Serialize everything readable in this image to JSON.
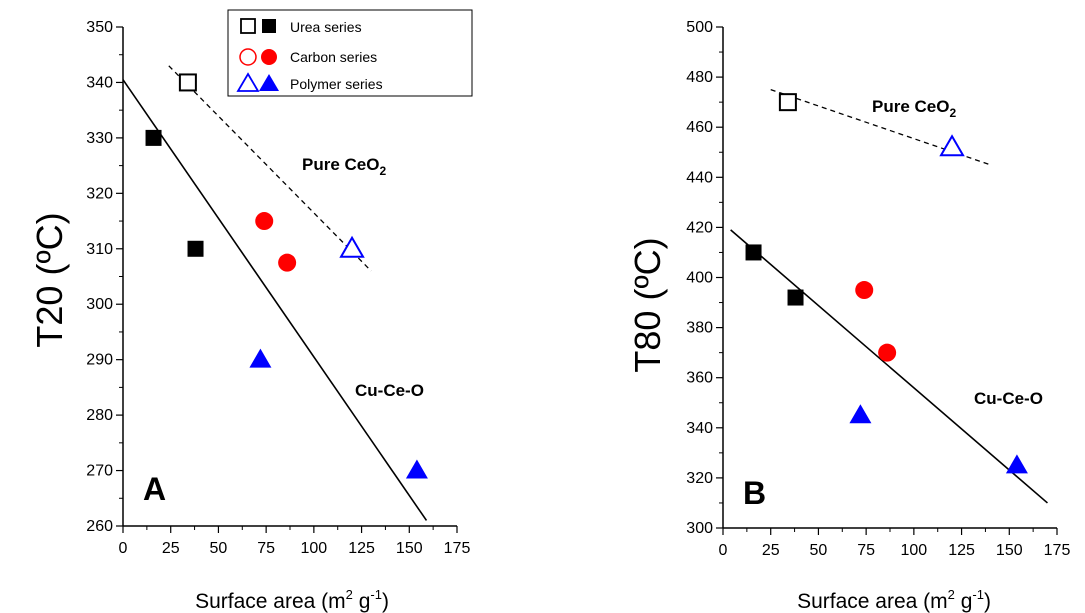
{
  "colors": {
    "urea": "#000000",
    "carbon": "#ff0000",
    "polymer": "#0000ff"
  },
  "legend": {
    "entries": [
      {
        "label": "Urea series",
        "color": "#000000",
        "shape": "square"
      },
      {
        "label": "Carbon series",
        "color": "#ff0000",
        "shape": "circle"
      },
      {
        "label": "Polymer series",
        "color": "#0000ff",
        "shape": "triangle"
      }
    ]
  },
  "chart_data": [
    {
      "type": "scatter",
      "panel": "A",
      "xlabel_main": "Surface area (m",
      "xlabel_sup1": "2",
      "xlabel_mid": " g",
      "xlabel_sup2": "-1",
      "xlabel_end": ")",
      "ylabel": "T20 (ºC)",
      "xlim": [
        0,
        175
      ],
      "ylim": [
        260,
        350
      ],
      "xticks": [
        0,
        25,
        50,
        75,
        100,
        125,
        150,
        175
      ],
      "yticks": [
        260,
        270,
        280,
        290,
        300,
        310,
        320,
        330,
        340,
        350
      ],
      "annotations": {
        "pure_base": "Pure CeO",
        "pure_sub": "2",
        "mixed": "Cu-Ce-O"
      },
      "series": [
        {
          "name": "Urea series",
          "color": "#000000",
          "marker": "square",
          "points": [
            {
              "x": 34,
              "y": 340,
              "filled": false
            },
            {
              "x": 16,
              "y": 330,
              "filled": true
            },
            {
              "x": 38,
              "y": 310,
              "filled": true
            }
          ]
        },
        {
          "name": "Carbon series",
          "color": "#ff0000",
          "marker": "circle",
          "points": [
            {
              "x": 74,
              "y": 315,
              "filled": true
            },
            {
              "x": 86,
              "y": 307.5,
              "filled": true
            }
          ]
        },
        {
          "name": "Polymer series",
          "color": "#0000ff",
          "marker": "triangle",
          "points": [
            {
              "x": 120,
              "y": 310,
              "filled": false
            },
            {
              "x": 72,
              "y": 290,
              "filled": true
            },
            {
              "x": 154,
              "y": 270,
              "filled": true
            }
          ]
        }
      ],
      "fit_lines": [
        {
          "style": "solid",
          "from": [
            0,
            340.5
          ],
          "to": [
            159,
            261
          ]
        },
        {
          "style": "dashed",
          "from": [
            24,
            343
          ],
          "to": [
            130,
            306
          ]
        }
      ]
    },
    {
      "type": "scatter",
      "panel": "B",
      "xlabel_main": "Surface area (m",
      "xlabel_sup1": "2",
      "xlabel_mid": " g",
      "xlabel_sup2": "-1",
      "xlabel_end": ")",
      "ylabel": "T80 (ºC)",
      "xlim": [
        0,
        175
      ],
      "ylim": [
        300,
        500
      ],
      "xticks": [
        0,
        25,
        50,
        75,
        100,
        125,
        150,
        175
      ],
      "yticks": [
        300,
        320,
        340,
        360,
        380,
        400,
        420,
        440,
        460,
        480,
        500
      ],
      "annotations": {
        "pure_base": "Pure CeO",
        "pure_sub": "2",
        "mixed": "Cu-Ce-O"
      },
      "series": [
        {
          "name": "Urea series",
          "color": "#000000",
          "marker": "square",
          "points": [
            {
              "x": 34,
              "y": 470,
              "filled": false
            },
            {
              "x": 16,
              "y": 410,
              "filled": true
            },
            {
              "x": 38,
              "y": 392,
              "filled": true
            }
          ]
        },
        {
          "name": "Carbon series",
          "color": "#ff0000",
          "marker": "circle",
          "points": [
            {
              "x": 74,
              "y": 395,
              "filled": true
            },
            {
              "x": 86,
              "y": 370,
              "filled": true
            }
          ]
        },
        {
          "name": "Polymer series",
          "color": "#0000ff",
          "marker": "triangle",
          "points": [
            {
              "x": 120,
              "y": 452,
              "filled": false
            },
            {
              "x": 72,
              "y": 345,
              "filled": true
            },
            {
              "x": 154,
              "y": 325,
              "filled": true
            }
          ]
        }
      ],
      "fit_lines": [
        {
          "style": "solid",
          "from": [
            4,
            419
          ],
          "to": [
            170,
            310
          ]
        },
        {
          "style": "dashed",
          "from": [
            25,
            475
          ],
          "to": [
            140,
            445
          ]
        }
      ]
    }
  ]
}
